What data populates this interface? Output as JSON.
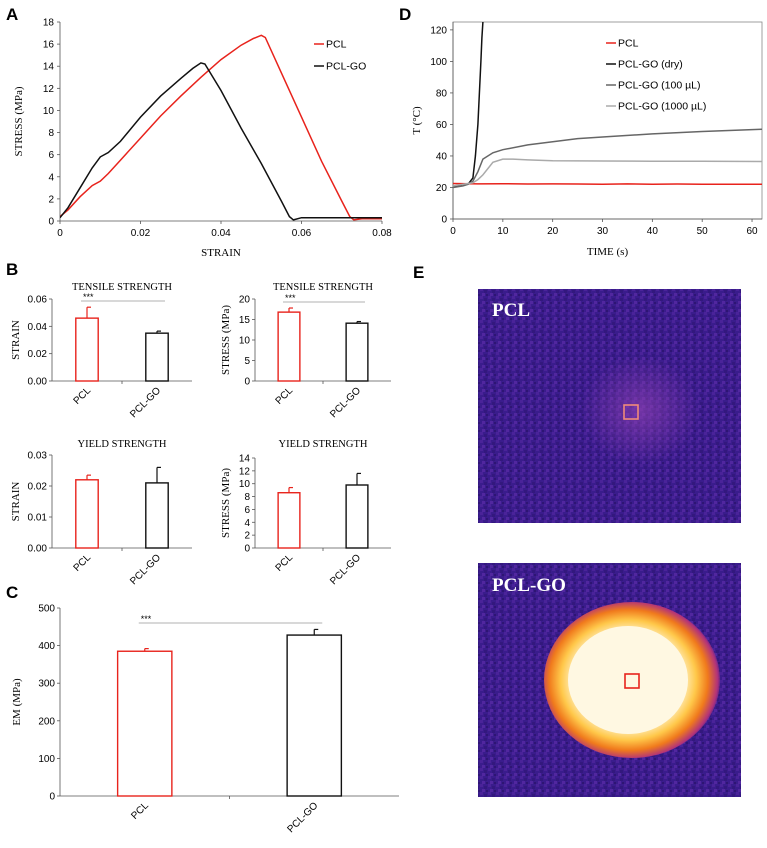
{
  "panels": {
    "A": "A",
    "B": "B",
    "C": "C",
    "D": "D",
    "E": "E"
  },
  "colors": {
    "pcl": "#e8231c",
    "pclgo": "#111111",
    "pclgo100": "#666666",
    "pclgo1000": "#aaaaaa"
  },
  "chart_data": [
    {
      "id": "A",
      "type": "line",
      "xlabel": "STRAIN",
      "ylabel": "STRESS (MPa)",
      "xlim": [
        0,
        0.08
      ],
      "ylim": [
        0,
        18
      ],
      "xticks": [
        0,
        0.02,
        0.04,
        0.06,
        0.08
      ],
      "xtick_labels": [
        "0",
        "0.02",
        "0.04",
        "0.06",
        "0.08"
      ],
      "yticks": [
        0,
        2,
        4,
        6,
        8,
        10,
        12,
        14,
        16,
        18
      ],
      "legend": "top-right",
      "series": [
        {
          "name": "PCL",
          "color": "#e8231c",
          "x": [
            0,
            0.002,
            0.005,
            0.008,
            0.01,
            0.012,
            0.015,
            0.02,
            0.025,
            0.03,
            0.035,
            0.04,
            0.045,
            0.048,
            0.05,
            0.051,
            0.055,
            0.06,
            0.065,
            0.07,
            0.072,
            0.073,
            0.075,
            0.08
          ],
          "y": [
            0.4,
            1,
            2.2,
            3.2,
            3.6,
            4.3,
            5.5,
            7.5,
            9.5,
            11.3,
            13,
            14.6,
            15.9,
            16.5,
            16.8,
            16.6,
            13.4,
            9.4,
            5.4,
            1.8,
            0.4,
            0.1,
            0.2,
            0.2
          ]
        },
        {
          "name": "PCL-GO",
          "color": "#111111",
          "x": [
            0,
            0.002,
            0.005,
            0.008,
            0.01,
            0.012,
            0.015,
            0.02,
            0.025,
            0.03,
            0.033,
            0.035,
            0.036,
            0.04,
            0.045,
            0.05,
            0.055,
            0.057,
            0.058,
            0.06,
            0.065,
            0.07,
            0.08
          ],
          "y": [
            0.3,
            1.2,
            3,
            4.8,
            5.8,
            6.2,
            7.2,
            9.4,
            11.3,
            12.9,
            13.8,
            14.3,
            14.2,
            11.8,
            8.4,
            5.2,
            1.8,
            0.4,
            0.1,
            0.3,
            0.3,
            0.3,
            0.3
          ]
        }
      ]
    },
    {
      "id": "B1",
      "type": "bar",
      "title": "TENSILE STRENGTH",
      "ylabel": "STRAIN",
      "categories": [
        "PCL",
        "PCL-GO"
      ],
      "values": [
        0.046,
        0.035
      ],
      "errors": [
        0.008,
        0.0015
      ],
      "ylim": [
        0,
        0.06
      ],
      "yticks": [
        0,
        0.02,
        0.04,
        0.06
      ],
      "ytick_labels": [
        "0.00",
        "0.02",
        "0.04",
        "0.06"
      ],
      "significance": "***"
    },
    {
      "id": "B2",
      "type": "bar",
      "title": "TENSILE STRENGTH",
      "ylabel": "STRESS (MPa)",
      "categories": [
        "PCL",
        "PCL-GO"
      ],
      "values": [
        16.8,
        14.1
      ],
      "errors": [
        1.0,
        0.4
      ],
      "ylim": [
        0,
        20
      ],
      "yticks": [
        0,
        5,
        10,
        15,
        20
      ],
      "ytick_labels": [
        "0",
        "5",
        "10",
        "15",
        "20"
      ],
      "significance": "***"
    },
    {
      "id": "B3",
      "type": "bar",
      "title": "YIELD STRENGTH",
      "ylabel": "STRAIN",
      "categories": [
        "PCL",
        "PCL-GO"
      ],
      "values": [
        0.022,
        0.021
      ],
      "errors": [
        0.0015,
        0.005
      ],
      "ylim": [
        0,
        0.03
      ],
      "yticks": [
        0,
        0.01,
        0.02,
        0.03
      ],
      "ytick_labels": [
        "0.00",
        "0.01",
        "0.02",
        "0.03"
      ],
      "significance": ""
    },
    {
      "id": "B4",
      "type": "bar",
      "title": "YIELD STRENGTH",
      "ylabel": "STRESS (MPa)",
      "categories": [
        "PCL",
        "PCL-GO"
      ],
      "values": [
        8.6,
        9.8
      ],
      "errors": [
        0.8,
        1.8
      ],
      "ylim": [
        0,
        14
      ],
      "yticks": [
        0,
        2,
        4,
        6,
        8,
        10,
        12,
        14
      ],
      "ytick_labels": [
        "0",
        "2",
        "4",
        "6",
        "8",
        "10",
        "12",
        "14"
      ],
      "significance": ""
    },
    {
      "id": "C",
      "type": "bar",
      "ylabel": "EM (MPa)",
      "categories": [
        "PCL",
        "PCL-GO"
      ],
      "values": [
        385,
        428
      ],
      "errors": [
        7,
        15
      ],
      "ylim": [
        0,
        500
      ],
      "yticks": [
        0,
        100,
        200,
        300,
        400,
        500
      ],
      "ytick_labels": [
        "0",
        "100",
        "200",
        "300",
        "400",
        "500"
      ],
      "significance": "***"
    },
    {
      "id": "D",
      "type": "line",
      "xlabel": "TIME (s)",
      "ylabel": "T (°C)",
      "xlim": [
        0,
        62
      ],
      "ylim": [
        0,
        125
      ],
      "xticks": [
        0,
        10,
        20,
        30,
        40,
        50,
        60
      ],
      "yticks": [
        0,
        20,
        40,
        60,
        80,
        100,
        120
      ],
      "legend": "top-right",
      "series": [
        {
          "name": "PCL",
          "color": "#e8231c",
          "x": [
            0,
            5,
            10,
            15,
            20,
            25,
            30,
            35,
            40,
            45,
            50,
            55,
            60,
            62
          ],
          "y": [
            22.5,
            22.3,
            22.4,
            22.2,
            22.3,
            22.2,
            22.1,
            22.3,
            22.0,
            22.2,
            22.1,
            22.0,
            22.1,
            22.0
          ]
        },
        {
          "name": "PCL-GO (dry)",
          "color": "#111111",
          "x": [
            0,
            1,
            2,
            3,
            3.5,
            4,
            4.5,
            5,
            5.3,
            5.6,
            5.8,
            6
          ],
          "y": [
            21,
            21,
            22,
            22,
            24,
            26,
            40,
            60,
            80,
            100,
            115,
            125
          ]
        },
        {
          "name": "PCL-GO (100 µL)",
          "color": "#666666",
          "x": [
            0,
            2,
            3,
            4,
            5,
            6,
            8,
            10,
            15,
            20,
            25,
            30,
            40,
            50,
            62
          ],
          "y": [
            20,
            21,
            22,
            24,
            30,
            38,
            42,
            44,
            47,
            49,
            51,
            52,
            54,
            55.5,
            57
          ]
        },
        {
          "name": "PCL-GO (1000 µL)",
          "color": "#aaaaaa",
          "x": [
            0,
            2,
            4,
            5,
            6,
            8,
            10,
            12,
            15,
            20,
            30,
            40,
            50,
            62
          ],
          "y": [
            21,
            22,
            23,
            25,
            28,
            36,
            38,
            38,
            37.5,
            37,
            36.8,
            36.7,
            36.6,
            36.5
          ]
        }
      ]
    }
  ],
  "thermal": {
    "top_label": "PCL",
    "bottom_label": "PCL-GO"
  }
}
